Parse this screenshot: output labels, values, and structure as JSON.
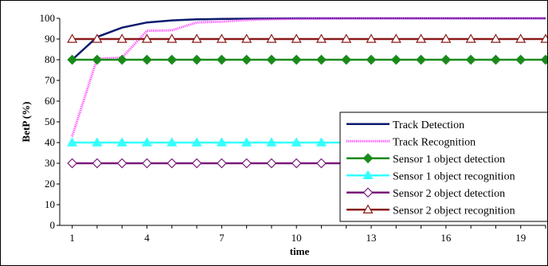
{
  "chart_data": {
    "type": "line",
    "title": "",
    "xlabel": "time",
    "ylabel": "BetP (%)",
    "xlim": [
      1,
      20
    ],
    "ylim": [
      0,
      100
    ],
    "y_ticks": [
      "0",
      "10",
      "20",
      "30",
      "40",
      "50",
      "60",
      "70",
      "80",
      "90",
      "100"
    ],
    "x_ticks": [
      "1",
      "4",
      "7",
      "10",
      "13",
      "16",
      "19"
    ],
    "legend_position": "lower-right",
    "grid": false,
    "x": [
      1,
      2,
      3,
      4,
      5,
      6,
      7,
      8,
      9,
      10,
      11,
      12,
      13,
      14,
      15,
      16,
      17,
      18,
      19,
      20
    ],
    "series": [
      {
        "name": "Track Detection",
        "color": "#0a1a6e",
        "marker": "none",
        "dash": "solid",
        "values": [
          80,
          91,
          95.5,
          98,
          99,
          99.5,
          99.7,
          99.8,
          99.9,
          100,
          100,
          100,
          100,
          100,
          100,
          100,
          100,
          100,
          100,
          100
        ]
      },
      {
        "name": "Track Recognition",
        "color": "#ff44ff",
        "marker": "none",
        "dash": "dotted",
        "values": [
          43,
          80.5,
          81,
          94,
          94.2,
          98,
          98.4,
          99.2,
          99.6,
          99.8,
          99.9,
          100,
          100,
          100,
          100,
          100,
          100,
          100,
          100,
          100
        ]
      },
      {
        "name": "Sensor 1 object detection",
        "color": "#1a8a1a",
        "marker": "diamond-filled",
        "dash": "solid",
        "values": [
          80,
          80,
          80,
          80,
          80,
          80,
          80,
          80,
          80,
          80,
          80,
          80,
          80,
          80,
          80,
          80,
          80,
          80,
          80,
          80
        ]
      },
      {
        "name": "Sensor 1 object recognition",
        "color": "#33ffff",
        "marker": "triangle-filled",
        "dash": "solid",
        "values": [
          40,
          40,
          40,
          40,
          40,
          40,
          40,
          40,
          40,
          40,
          40,
          40,
          40,
          40,
          40,
          40,
          40,
          40,
          40,
          40
        ]
      },
      {
        "name": "Sensor 2 object detection",
        "color": "#7a1a7a",
        "marker": "diamond-open",
        "dash": "solid",
        "values": [
          30,
          30,
          30,
          30,
          30,
          30,
          30,
          30,
          30,
          30,
          30,
          30,
          30,
          30,
          30,
          30,
          30,
          30,
          30,
          30
        ]
      },
      {
        "name": "Sensor 2 object recognition",
        "color": "#8b1a1a",
        "marker": "triangle-open",
        "dash": "solid",
        "values": [
          90,
          90,
          90,
          90,
          90,
          90,
          90,
          90,
          90,
          90,
          90,
          90,
          90,
          90,
          90,
          90,
          90,
          90,
          90,
          90
        ]
      }
    ]
  }
}
